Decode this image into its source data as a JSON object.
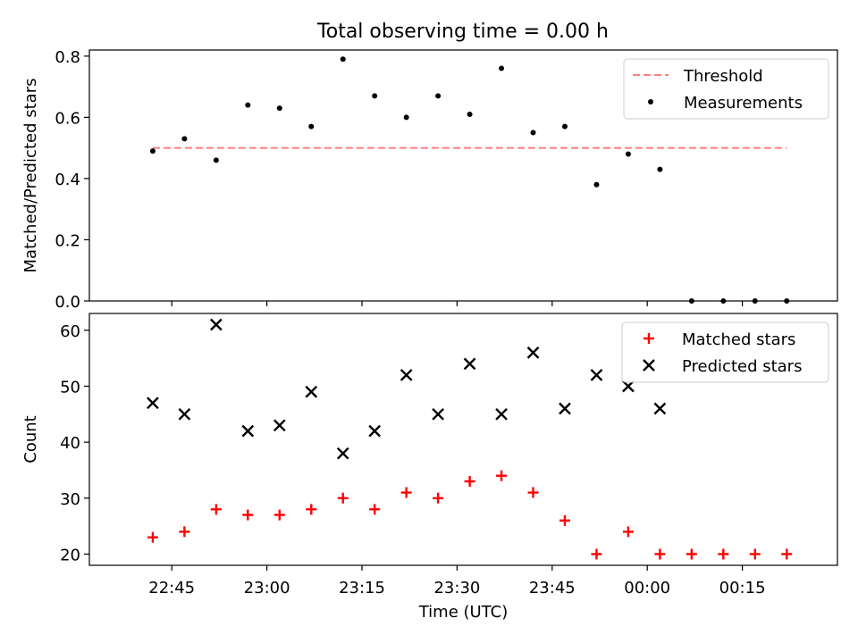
{
  "figure": {
    "title": "Total observing time = 0.00 h",
    "x_tick_labels": [
      "22:45",
      "23:00",
      "23:15",
      "23:30",
      "23:45",
      "00:00",
      "00:15"
    ]
  },
  "chart_data": [
    {
      "type": "scatter",
      "ylabel": "Matched/Predicted stars",
      "xlabel": "",
      "ylim": [
        0,
        0.82
      ],
      "y_ticks": [
        0.0,
        0.2,
        0.4,
        0.6,
        0.8
      ],
      "y_tick_labels": [
        "0.0",
        "0.2",
        "0.4",
        "0.6",
        "0.8"
      ],
      "x_tick_labels_shown": false,
      "legend": {
        "position": "top-right",
        "entries": [
          {
            "label": "Threshold",
            "style": "dashed-line",
            "color": "#ff7f7f"
          },
          {
            "label": "Measurements",
            "style": "dot",
            "color": "#000000"
          }
        ]
      },
      "x": [
        "22:42",
        "22:47",
        "22:52",
        "22:57",
        "23:02",
        "23:07",
        "23:12",
        "23:17",
        "23:22",
        "23:27",
        "23:32",
        "23:37",
        "23:42",
        "23:47",
        "23:52",
        "23:57",
        "00:02",
        "00:07",
        "00:12",
        "00:17",
        "00:22"
      ],
      "series": [
        {
          "name": "Threshold",
          "kind": "line",
          "color": "#ff7f7f",
          "x": [
            "22:42",
            "00:22"
          ],
          "values": [
            0.5,
            0.5
          ]
        },
        {
          "name": "Measurements",
          "kind": "dot",
          "color": "#000000",
          "values": [
            0.49,
            0.53,
            0.46,
            0.64,
            0.63,
            0.57,
            0.79,
            0.67,
            0.6,
            0.67,
            0.61,
            0.76,
            0.55,
            0.57,
            0.38,
            0.48,
            0.43,
            0.0,
            0.0,
            0.0,
            0.0
          ]
        }
      ]
    },
    {
      "type": "scatter",
      "ylabel": "Count",
      "xlabel": "Time (UTC)",
      "ylim": [
        18,
        63
      ],
      "y_ticks": [
        20,
        30,
        40,
        50,
        60
      ],
      "y_tick_labels": [
        "20",
        "30",
        "40",
        "50",
        "60"
      ],
      "x_tick_labels_shown": true,
      "legend": {
        "position": "top-right",
        "entries": [
          {
            "label": "Matched stars",
            "style": "plus",
            "color": "#ff0000"
          },
          {
            "label": "Predicted stars",
            "style": "x",
            "color": "#000000"
          }
        ]
      },
      "x": [
        "22:42",
        "22:47",
        "22:52",
        "22:57",
        "23:02",
        "23:07",
        "23:12",
        "23:17",
        "23:22",
        "23:27",
        "23:32",
        "23:37",
        "23:42",
        "23:47",
        "23:52",
        "23:57",
        "00:02",
        "00:07",
        "00:12",
        "00:17",
        "00:22"
      ],
      "series": [
        {
          "name": "Matched stars",
          "kind": "plus",
          "color": "#ff0000",
          "values": [
            23,
            24,
            28,
            27,
            27,
            28,
            30,
            28,
            31,
            30,
            33,
            34,
            31,
            26,
            20,
            24,
            20,
            20,
            20,
            20,
            20
          ]
        },
        {
          "name": "Predicted stars",
          "kind": "x",
          "color": "#000000",
          "values": [
            47,
            45,
            61,
            42,
            43,
            49,
            38,
            42,
            52,
            45,
            54,
            45,
            56,
            46,
            52,
            50,
            46,
            null,
            null,
            null,
            null
          ]
        }
      ]
    }
  ]
}
